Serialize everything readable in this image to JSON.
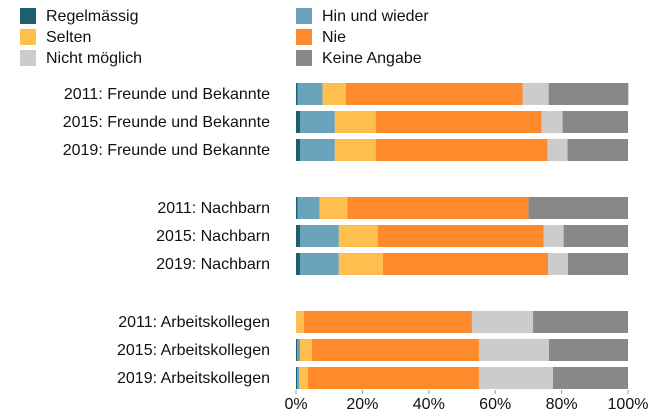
{
  "chart_data": {
    "type": "stacked-bar-horizontal",
    "categories": [
      "2011: Freunde und Bekannte",
      "2015: Freunde und Bekannte",
      "2019: Freunde und Bekannte",
      "2011: Nachbarn",
      "2015: Nachbarn",
      "2019: Nachbarn",
      "2011: Arbeitskollegen",
      "2015: Arbeitskollegen",
      "2019: Arbeitskollegen"
    ],
    "series": [
      {
        "name": "Regelmässig",
        "color": "#1d5f6e",
        "values": [
          0.5,
          1.2,
          1.2,
          0.5,
          1.2,
          1.2,
          0,
          0.3,
          0.3
        ]
      },
      {
        "name": "Hin und wieder",
        "color": "#6aa3bc",
        "values": [
          7.5,
          10.5,
          10.5,
          6.6,
          11.7,
          11.7,
          0,
          0.9,
          0.6
        ]
      },
      {
        "name": "Selten",
        "color": "#ffbf4f",
        "values": [
          7,
          12.3,
          12.3,
          8.4,
          11.7,
          13.3,
          2.4,
          3.6,
          2.7
        ]
      },
      {
        "name": "Nie",
        "color": "#ff8a2b",
        "values": [
          53.3,
          50,
          51.8,
          54.5,
          50,
          49.7,
          50.6,
          50.3,
          51.5
        ]
      },
      {
        "name": "Nicht möglich",
        "color": "#cccccc",
        "values": [
          7.8,
          6.3,
          6,
          0,
          6,
          6,
          18.4,
          21.1,
          22.3
        ]
      },
      {
        "name": "Keine Angabe",
        "color": "#888888",
        "values": [
          24,
          19.7,
          18.2,
          30,
          19.4,
          18.1,
          28.6,
          23.8,
          22.6
        ]
      }
    ],
    "xlim": [
      0,
      100
    ],
    "xticks": [
      {
        "value": 0,
        "label": "0%"
      },
      {
        "value": 20,
        "label": "20%"
      },
      {
        "value": 40,
        "label": "40%"
      },
      {
        "value": 60,
        "label": "60%"
      },
      {
        "value": 80,
        "label": "80%"
      },
      {
        "value": 100,
        "label": "100%"
      }
    ]
  }
}
